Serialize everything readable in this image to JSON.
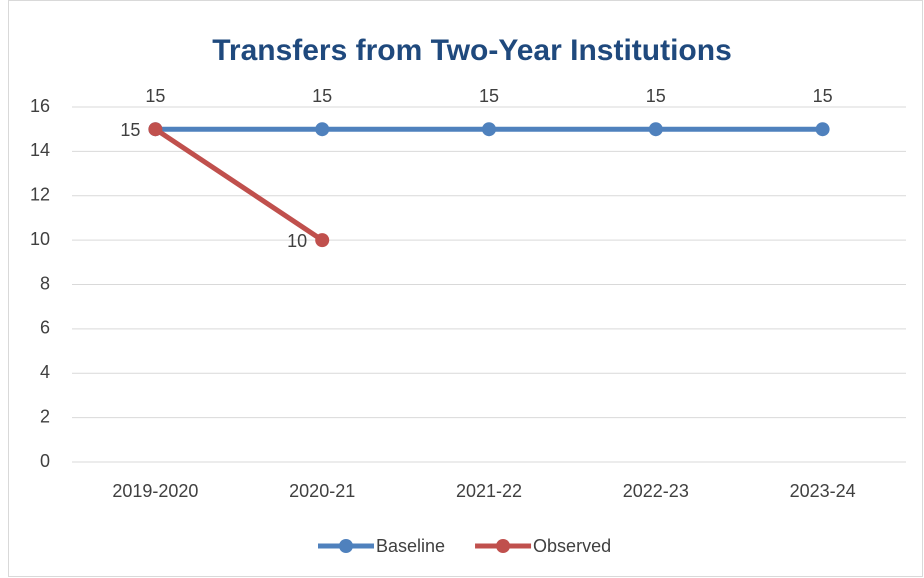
{
  "chart_data": {
    "type": "line",
    "title": "Transfers from Two-Year Institutions",
    "categories": [
      "2019-2020",
      "2020-21",
      "2021-22",
      "2022-23",
      "2023-24"
    ],
    "series": [
      {
        "name": "Baseline",
        "color": "#4f81bd",
        "values": [
          15,
          15,
          15,
          15,
          15
        ]
      },
      {
        "name": "Observed",
        "color": "#c0504d",
        "values": [
          15,
          10,
          null,
          null,
          null
        ]
      }
    ],
    "ylim": [
      0,
      16
    ],
    "yticks": [
      0,
      2,
      4,
      6,
      8,
      10,
      12,
      14,
      16
    ],
    "grid": true,
    "legend": "bottom"
  }
}
